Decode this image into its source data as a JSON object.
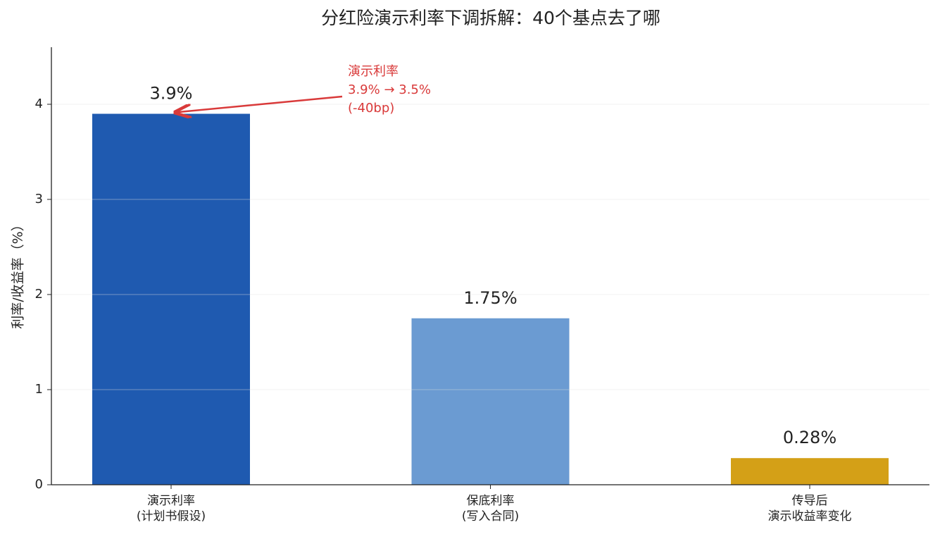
{
  "chart_data": {
    "type": "bar",
    "title": "分红险演示利率下调拆解：40个基点去了哪",
    "y_label": "利率/收益率（%）",
    "categories": [
      "演示利率\n(计划书假设)",
      "保底利率\n(写入合同)",
      "传导后\n演示收益率变化"
    ],
    "values": [
      3.9,
      1.75,
      0.28
    ],
    "value_labels": [
      "3.9%",
      "1.75%",
      "0.28%"
    ],
    "colors": [
      "#1f5ab0",
      "#6b9bd2",
      "#d4a017"
    ],
    "ylim": [
      0,
      4.6
    ],
    "yticks": [
      0,
      1,
      2,
      3,
      4
    ],
    "grid": true,
    "annotation": "演示利率\n3.9% → 3.5%\n(-40bp)",
    "annotation_color": "#d93a3a"
  }
}
